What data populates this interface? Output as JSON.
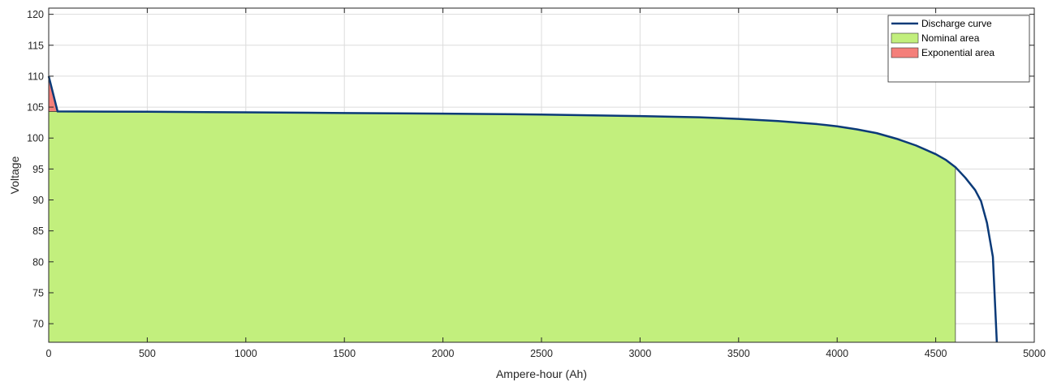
{
  "chart_data": {
    "type": "area",
    "title": "",
    "xlabel": "Ampere-hour (Ah)",
    "ylabel": "Voltage",
    "xlim": [
      0,
      5000
    ],
    "ylim": [
      67,
      121
    ],
    "x_ticks": [
      0,
      500,
      1000,
      1500,
      2000,
      2500,
      3000,
      3500,
      4000,
      4500,
      5000
    ],
    "y_ticks": [
      70,
      75,
      80,
      85,
      90,
      95,
      100,
      105,
      110,
      115,
      120
    ],
    "x_tick_labels": [
      "0",
      "500",
      "1000",
      "1500",
      "2000",
      "2500",
      "3000",
      "3500",
      "4000",
      "4500",
      "5000"
    ],
    "y_tick_labels": [
      "70",
      "75",
      "80",
      "85",
      "90",
      "95",
      "100",
      "105",
      "110",
      "115",
      "120"
    ],
    "grid": true,
    "legend_position": "top-right",
    "series": [
      {
        "name": "Discharge curve",
        "kind": "line",
        "color": "#0b3a78",
        "x": [
          0,
          45,
          500,
          1000,
          1500,
          2000,
          2500,
          3000,
          3300,
          3500,
          3700,
          3900,
          4000,
          4100,
          4200,
          4300,
          4400,
          4500,
          4550,
          4600,
          4650,
          4700,
          4730,
          4760,
          4790,
          4810
        ],
        "y": [
          110,
          104.3,
          104.25,
          104.15,
          104.05,
          103.95,
          103.8,
          103.55,
          103.35,
          103.1,
          102.75,
          102.25,
          101.9,
          101.4,
          100.8,
          99.9,
          98.8,
          97.4,
          96.5,
          95.3,
          93.6,
          91.6,
          89.8,
          86.3,
          80.8,
          67
        ]
      },
      {
        "name": "Nominal area",
        "kind": "area",
        "color": "#c2ef7d",
        "x": [
          0,
          45,
          500,
          1000,
          1500,
          2000,
          2500,
          3000,
          3300,
          3500,
          3700,
          3900,
          4000,
          4100,
          4200,
          4300,
          4400,
          4500,
          4550,
          4600
        ],
        "y": [
          104.3,
          104.3,
          104.25,
          104.15,
          104.05,
          103.95,
          103.8,
          103.55,
          103.35,
          103.1,
          102.75,
          102.25,
          101.9,
          101.4,
          100.8,
          99.9,
          98.8,
          97.4,
          96.5,
          95.3
        ]
      },
      {
        "name": "Exponential area",
        "kind": "area",
        "color": "#f47f7a",
        "x": [
          0,
          45
        ],
        "y": [
          110,
          104.3
        ]
      }
    ]
  }
}
